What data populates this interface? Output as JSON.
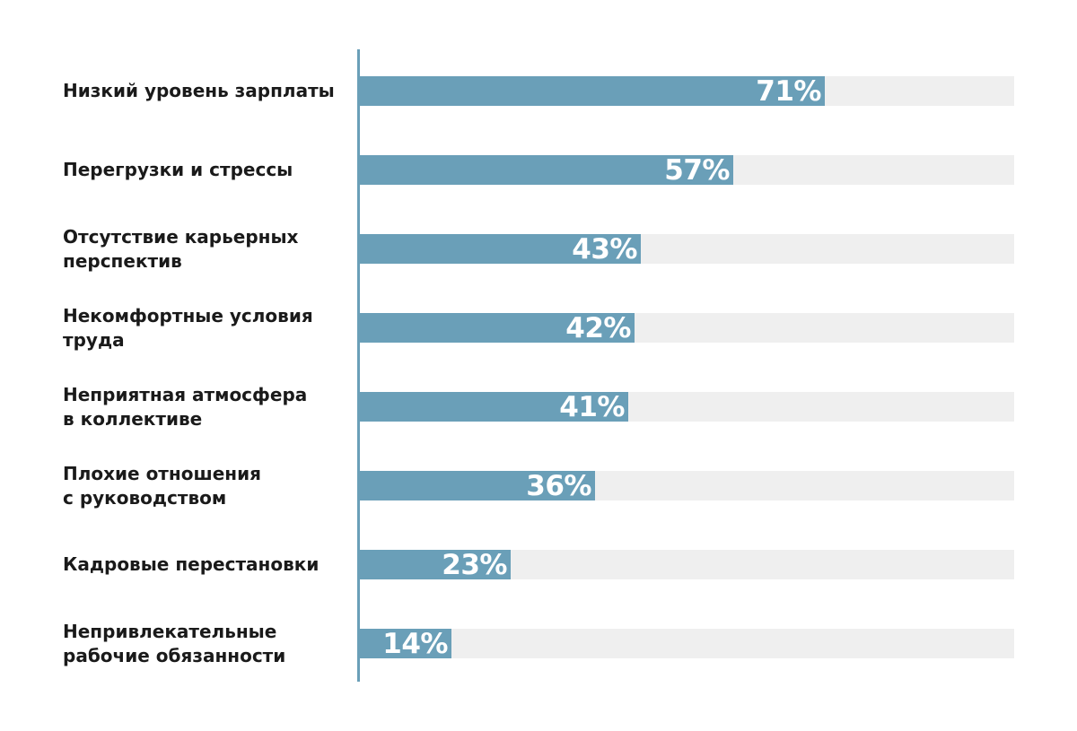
{
  "chart_data": {
    "type": "bar",
    "orientation": "horizontal",
    "categories": [
      "Низкий уровень зарплаты",
      "Перегрузки и стрессы",
      "Отсутствие карьерных\nперспектив",
      "Некомфортные условия\nтруда",
      "Неприятная атмосфера\nв коллективе",
      "Плохие отношения\nс руководством",
      "Кадровые перестановки",
      "Непривлекательные\nрабочие обязанности"
    ],
    "values": [
      71,
      57,
      43,
      42,
      41,
      36,
      23,
      14
    ],
    "value_labels": [
      "71%",
      "57%",
      "43%",
      "42%",
      "41%",
      "36%",
      "23%",
      "14%"
    ],
    "xlim": [
      0,
      100
    ],
    "grid": false,
    "colors": {
      "bar": "#6a9fb8",
      "track": "#efefef",
      "axis": "#6a9fb8",
      "label": "#1a1a1a",
      "value_text": "#ffffff"
    }
  }
}
